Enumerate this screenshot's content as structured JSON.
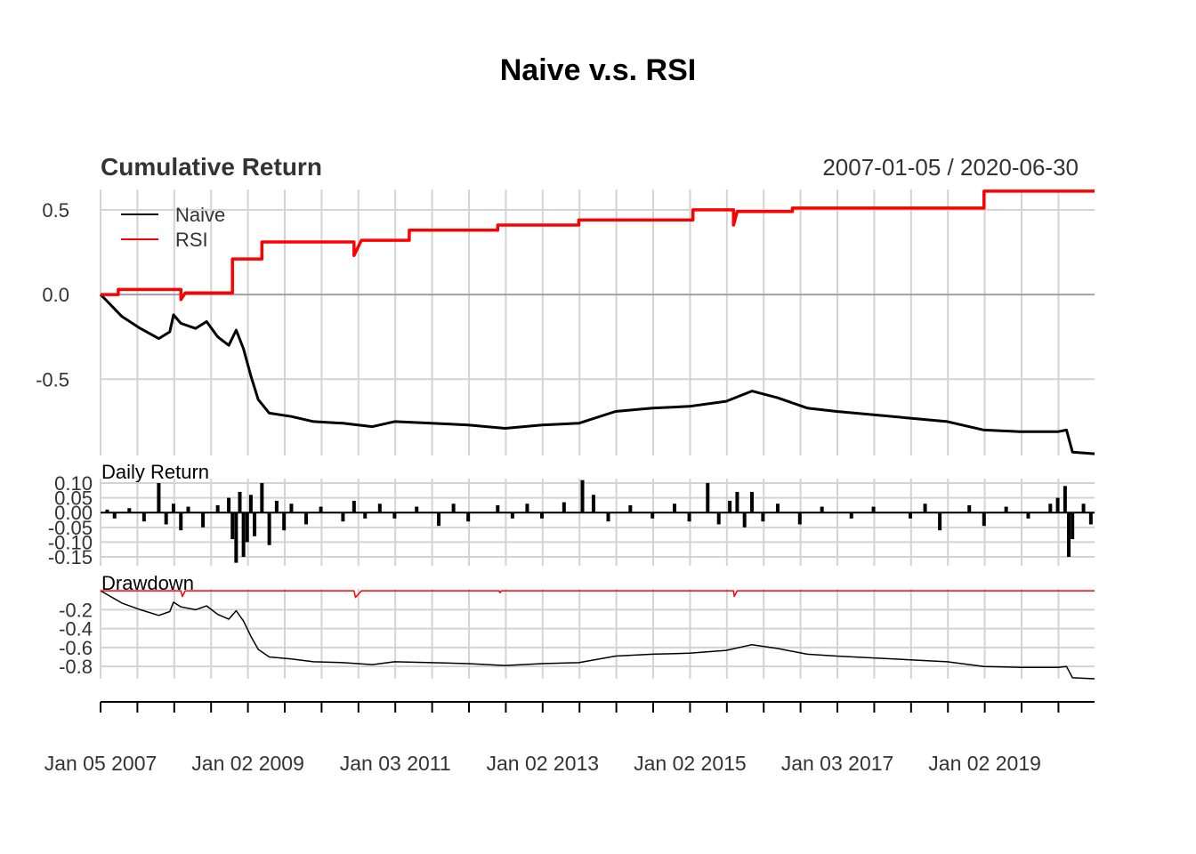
{
  "chart_data": {
    "type": "line",
    "title": "Naive v.s. RSI",
    "date_range_label": "2007-01-05 / 2020-06-30",
    "colors": {
      "Naive": "#000000",
      "RSI": "#ff0000",
      "grid": "#d3d3d3",
      "zero_line": "#a0a0a0"
    },
    "x_tick_labels": [
      "Jan 05 2007",
      "Jan 02 2009",
      "Jan 03 2011",
      "Jan 02 2013",
      "Jan 02 2015",
      "Jan 03 2017",
      "Jan 02 2019"
    ],
    "panels": [
      {
        "name": "cumulative",
        "title": "Cumulative Return",
        "yticks": [
          0.5,
          0.0,
          -0.5
        ],
        "ytick_labels": [
          "0.5",
          "0.0",
          "-0.5"
        ],
        "ylim": [
          -0.95,
          0.62
        ],
        "legend": {
          "position": "top-left",
          "entries": [
            "Naive",
            "RSI"
          ]
        },
        "series": [
          {
            "name": "Naive",
            "points": [
              [
                2007.01,
                0.0
              ],
              [
                2007.1,
                -0.04
              ],
              [
                2007.3,
                -0.13
              ],
              [
                2007.55,
                -0.2
              ],
              [
                2007.8,
                -0.26
              ],
              [
                2007.95,
                -0.22
              ],
              [
                2008.0,
                -0.12
              ],
              [
                2008.1,
                -0.17
              ],
              [
                2008.3,
                -0.2
              ],
              [
                2008.45,
                -0.16
              ],
              [
                2008.6,
                -0.25
              ],
              [
                2008.75,
                -0.3
              ],
              [
                2008.85,
                -0.21
              ],
              [
                2008.95,
                -0.32
              ],
              [
                2009.05,
                -0.48
              ],
              [
                2009.15,
                -0.62
              ],
              [
                2009.3,
                -0.7
              ],
              [
                2009.6,
                -0.72
              ],
              [
                2009.9,
                -0.75
              ],
              [
                2010.3,
                -0.76
              ],
              [
                2010.7,
                -0.78
              ],
              [
                2011.0,
                -0.75
              ],
              [
                2011.5,
                -0.76
              ],
              [
                2012.0,
                -0.77
              ],
              [
                2012.5,
                -0.79
              ],
              [
                2013.0,
                -0.77
              ],
              [
                2013.5,
                -0.76
              ],
              [
                2014.0,
                -0.69
              ],
              [
                2014.5,
                -0.67
              ],
              [
                2015.0,
                -0.66
              ],
              [
                2015.5,
                -0.63
              ],
              [
                2015.85,
                -0.57
              ],
              [
                2016.2,
                -0.61
              ],
              [
                2016.6,
                -0.67
              ],
              [
                2017.0,
                -0.69
              ],
              [
                2017.5,
                -0.71
              ],
              [
                2018.0,
                -0.73
              ],
              [
                2018.5,
                -0.75
              ],
              [
                2019.0,
                -0.8
              ],
              [
                2019.5,
                -0.81
              ],
              [
                2020.0,
                -0.81
              ],
              [
                2020.12,
                -0.8
              ],
              [
                2020.2,
                -0.93
              ],
              [
                2020.5,
                -0.94
              ]
            ]
          },
          {
            "name": "RSI",
            "points": [
              [
                2007.01,
                0.0
              ],
              [
                2007.25,
                0.0
              ],
              [
                2007.25,
                0.03
              ],
              [
                2008.1,
                0.03
              ],
              [
                2008.1,
                -0.03
              ],
              [
                2008.16,
                0.01
              ],
              [
                2008.8,
                0.01
              ],
              [
                2008.8,
                0.21
              ],
              [
                2009.2,
                0.21
              ],
              [
                2009.2,
                0.31
              ],
              [
                2010.45,
                0.31
              ],
              [
                2010.45,
                0.23
              ],
              [
                2010.55,
                0.32
              ],
              [
                2011.2,
                0.32
              ],
              [
                2011.2,
                0.38
              ],
              [
                2012.4,
                0.38
              ],
              [
                2012.4,
                0.41
              ],
              [
                2013.5,
                0.41
              ],
              [
                2013.5,
                0.44
              ],
              [
                2015.05,
                0.44
              ],
              [
                2015.05,
                0.5
              ],
              [
                2015.6,
                0.5
              ],
              [
                2015.6,
                0.41
              ],
              [
                2015.65,
                0.49
              ],
              [
                2016.4,
                0.49
              ],
              [
                2016.4,
                0.51
              ],
              [
                2019.0,
                0.51
              ],
              [
                2019.0,
                0.61
              ],
              [
                2020.5,
                0.61
              ]
            ]
          }
        ]
      },
      {
        "name": "daily",
        "title": "Daily Return",
        "ytick_labels": [
          "0.10",
          "0.05",
          "0.00",
          "-0.05",
          "-0.10",
          "-0.15"
        ],
        "yticks": [
          0.1,
          0.05,
          0.0,
          -0.05,
          -0.1,
          -0.15
        ],
        "ylim": [
          -0.18,
          0.115
        ],
        "series": [
          {
            "name": "Naive",
            "type": "bar",
            "points": [
              [
                2007.1,
                0.01
              ],
              [
                2007.2,
                -0.02
              ],
              [
                2007.4,
                0.015
              ],
              [
                2007.6,
                -0.03
              ],
              [
                2007.8,
                0.1
              ],
              [
                2007.9,
                -0.04
              ],
              [
                2008.0,
                0.03
              ],
              [
                2008.1,
                -0.06
              ],
              [
                2008.2,
                0.02
              ],
              [
                2008.4,
                -0.05
              ],
              [
                2008.6,
                0.025
              ],
              [
                2008.75,
                0.05
              ],
              [
                2008.8,
                -0.09
              ],
              [
                2008.85,
                -0.17
              ],
              [
                2008.9,
                0.07
              ],
              [
                2008.95,
                -0.15
              ],
              [
                2009.0,
                -0.1
              ],
              [
                2009.05,
                0.06
              ],
              [
                2009.1,
                -0.08
              ],
              [
                2009.2,
                0.1
              ],
              [
                2009.3,
                -0.11
              ],
              [
                2009.4,
                0.04
              ],
              [
                2009.5,
                -0.06
              ],
              [
                2009.6,
                0.03
              ],
              [
                2009.8,
                -0.04
              ],
              [
                2010.0,
                0.02
              ],
              [
                2010.3,
                -0.03
              ],
              [
                2010.45,
                0.04
              ],
              [
                2010.6,
                -0.02
              ],
              [
                2010.8,
                0.03
              ],
              [
                2011.0,
                -0.02
              ],
              [
                2011.3,
                0.02
              ],
              [
                2011.6,
                -0.045
              ],
              [
                2011.8,
                0.03
              ],
              [
                2012.0,
                -0.03
              ],
              [
                2012.4,
                0.025
              ],
              [
                2012.6,
                -0.02
              ],
              [
                2012.8,
                0.03
              ],
              [
                2013.0,
                -0.02
              ],
              [
                2013.3,
                0.035
              ],
              [
                2013.55,
                0.11
              ],
              [
                2013.7,
                0.06
              ],
              [
                2013.9,
                -0.03
              ],
              [
                2014.2,
                0.025
              ],
              [
                2014.5,
                -0.02
              ],
              [
                2014.8,
                0.03
              ],
              [
                2015.0,
                -0.03
              ],
              [
                2015.25,
                0.1
              ],
              [
                2015.4,
                -0.04
              ],
              [
                2015.55,
                0.04
              ],
              [
                2015.65,
                0.07
              ],
              [
                2015.75,
                -0.05
              ],
              [
                2015.85,
                0.07
              ],
              [
                2016.0,
                -0.03
              ],
              [
                2016.2,
                0.03
              ],
              [
                2016.5,
                -0.04
              ],
              [
                2016.8,
                0.02
              ],
              [
                2017.2,
                -0.02
              ],
              [
                2017.5,
                0.02
              ],
              [
                2018.0,
                -0.02
              ],
              [
                2018.2,
                0.03
              ],
              [
                2018.4,
                -0.06
              ],
              [
                2018.8,
                0.025
              ],
              [
                2019.0,
                -0.045
              ],
              [
                2019.3,
                0.02
              ],
              [
                2019.6,
                -0.02
              ],
              [
                2019.9,
                0.03
              ],
              [
                2020.0,
                0.05
              ],
              [
                2020.1,
                0.09
              ],
              [
                2020.15,
                -0.15
              ],
              [
                2020.2,
                -0.09
              ],
              [
                2020.35,
                0.03
              ],
              [
                2020.45,
                -0.04
              ]
            ]
          }
        ]
      },
      {
        "name": "drawdown",
        "title": "Drawdown",
        "ytick_labels": [
          "-0.2",
          "-0.4",
          "-0.6",
          "-0.8"
        ],
        "yticks": [
          -0.2,
          -0.4,
          -0.6,
          -0.8
        ],
        "ylim": [
          -0.93,
          0.02
        ],
        "series": [
          {
            "name": "Naive",
            "points": [
              [
                2007.01,
                0.0
              ],
              [
                2007.1,
                -0.04
              ],
              [
                2007.3,
                -0.13
              ],
              [
                2007.55,
                -0.2
              ],
              [
                2007.8,
                -0.26
              ],
              [
                2007.95,
                -0.22
              ],
              [
                2008.0,
                -0.12
              ],
              [
                2008.1,
                -0.17
              ],
              [
                2008.3,
                -0.2
              ],
              [
                2008.45,
                -0.16
              ],
              [
                2008.6,
                -0.25
              ],
              [
                2008.75,
                -0.3
              ],
              [
                2008.85,
                -0.21
              ],
              [
                2008.95,
                -0.32
              ],
              [
                2009.05,
                -0.48
              ],
              [
                2009.15,
                -0.62
              ],
              [
                2009.3,
                -0.7
              ],
              [
                2009.6,
                -0.72
              ],
              [
                2009.9,
                -0.75
              ],
              [
                2010.3,
                -0.76
              ],
              [
                2010.7,
                -0.78
              ],
              [
                2011.0,
                -0.75
              ],
              [
                2011.5,
                -0.76
              ],
              [
                2012.0,
                -0.77
              ],
              [
                2012.5,
                -0.79
              ],
              [
                2013.0,
                -0.77
              ],
              [
                2013.5,
                -0.76
              ],
              [
                2014.0,
                -0.69
              ],
              [
                2014.5,
                -0.67
              ],
              [
                2015.0,
                -0.66
              ],
              [
                2015.5,
                -0.63
              ],
              [
                2015.85,
                -0.57
              ],
              [
                2016.2,
                -0.61
              ],
              [
                2016.6,
                -0.67
              ],
              [
                2017.0,
                -0.69
              ],
              [
                2017.5,
                -0.71
              ],
              [
                2018.0,
                -0.73
              ],
              [
                2018.5,
                -0.75
              ],
              [
                2019.0,
                -0.8
              ],
              [
                2019.5,
                -0.81
              ],
              [
                2020.0,
                -0.81
              ],
              [
                2020.12,
                -0.8
              ],
              [
                2020.2,
                -0.92
              ],
              [
                2020.5,
                -0.93
              ]
            ]
          },
          {
            "name": "RSI",
            "points": [
              [
                2007.01,
                0.0
              ],
              [
                2008.1,
                0.0
              ],
              [
                2008.12,
                -0.06
              ],
              [
                2008.16,
                0.0
              ],
              [
                2010.45,
                0.0
              ],
              [
                2010.47,
                -0.07
              ],
              [
                2010.55,
                0.0
              ],
              [
                2012.42,
                0.0
              ],
              [
                2012.43,
                -0.02
              ],
              [
                2012.45,
                0.0
              ],
              [
                2015.6,
                0.0
              ],
              [
                2015.61,
                -0.06
              ],
              [
                2015.65,
                0.0
              ],
              [
                2020.5,
                0.0
              ]
            ]
          }
        ]
      }
    ]
  }
}
